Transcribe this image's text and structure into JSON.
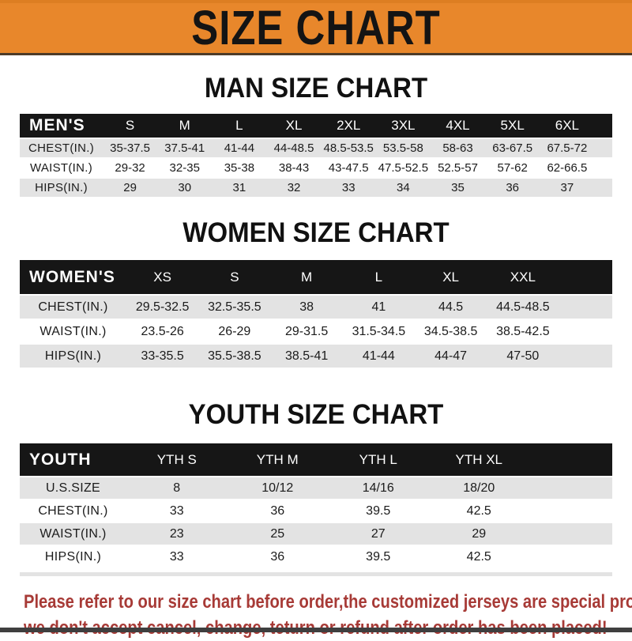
{
  "banner": {
    "title": "SIZE CHART"
  },
  "colors": {
    "banner_bg": "#E8872B",
    "banner_border": "#4D3B28",
    "table_header_bg": "#161616",
    "table_header_text": "#FFFFFF",
    "row_gray": "#E3E3E3",
    "row_white": "#FFFFFF",
    "footer_red": "#A73A36",
    "bottom_strip": "#3F3F3F"
  },
  "sections": [
    {
      "heading": "MAN SIZE CHART",
      "header_label": "MEN'S",
      "columns": [
        "S",
        "M",
        "L",
        "XL",
        "2XL",
        "3XL",
        "4XL",
        "5XL",
        "6XL"
      ],
      "rows": [
        {
          "label": "CHEST(IN.)",
          "values": [
            "35-37.5",
            "37.5-41",
            "41-44",
            "44-48.5",
            "48.5-53.5",
            "53.5-58",
            "58-63",
            "63-67.5",
            "67.5-72"
          ]
        },
        {
          "label": "WAIST(IN.)",
          "values": [
            "29-32",
            "32-35",
            "35-38",
            "38-43",
            "43-47.5",
            "47.5-52.5",
            "52.5-57",
            "57-62",
            "62-66.5"
          ]
        },
        {
          "label": "HIPS(IN.)",
          "values": [
            "29",
            "30",
            "31",
            "32",
            "33",
            "34",
            "35",
            "36",
            "37"
          ]
        }
      ]
    },
    {
      "heading": "WOMEN SIZE CHART",
      "header_label": "WOMEN'S",
      "columns": [
        "XS",
        "S",
        "M",
        "L",
        "XL",
        "XXL"
      ],
      "rows": [
        {
          "label": "CHEST(IN.)",
          "values": [
            "29.5-32.5",
            "32.5-35.5",
            "38",
            "41",
            "44.5",
            "44.5-48.5"
          ]
        },
        {
          "label": "WAIST(IN.)",
          "values": [
            "23.5-26",
            "26-29",
            "29-31.5",
            "31.5-34.5",
            "34.5-38.5",
            "38.5-42.5"
          ]
        },
        {
          "label": "HIPS(IN.)",
          "values": [
            "33-35.5",
            "35.5-38.5",
            "38.5-41",
            "41-44",
            "44-47",
            "47-50"
          ]
        }
      ]
    },
    {
      "heading": "YOUTH SIZE CHART",
      "header_label": "YOUTH",
      "columns": [
        "YTH S",
        "YTH M",
        "YTH L",
        "YTH XL"
      ],
      "rows": [
        {
          "label": "U.S.SIZE",
          "values": [
            "8",
            "10/12",
            "14/16",
            "18/20"
          ]
        },
        {
          "label": "CHEST(IN.)",
          "values": [
            "33",
            "36",
            "39.5",
            "42.5"
          ]
        },
        {
          "label": "WAIST(IN.)",
          "values": [
            "23",
            "25",
            "27",
            "29"
          ]
        },
        {
          "label": "HIPS(IN.)",
          "values": [
            "33",
            "36",
            "39.5",
            "42.5"
          ]
        }
      ]
    }
  ],
  "footer": {
    "line1": "Please refer to our size chart before order,the customized jerseys are special products,",
    "line2": "we don't accept cancel, change, teturn or refund after order has been placed!"
  }
}
